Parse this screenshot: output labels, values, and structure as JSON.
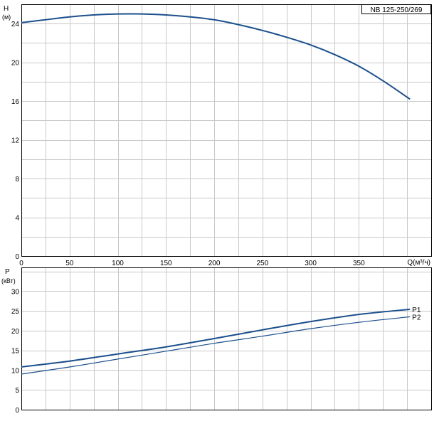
{
  "model_label": "NB 125-250/269",
  "chart_data": [
    {
      "type": "line",
      "y_axis_symbol": "H",
      "y_axis_unit": "(м)",
      "x_axis_label": "Q(м³/ч)",
      "xlim": [
        0,
        425
      ],
      "ylim": [
        0,
        26
      ],
      "x_ticks": [
        0,
        50,
        100,
        150,
        200,
        250,
        300,
        350
      ],
      "y_ticks": [
        0,
        4,
        8,
        12,
        16,
        20,
        24
      ],
      "grid": true,
      "line_color": "#1b4f8c",
      "series": [
        {
          "name": "",
          "x": [
            0,
            25,
            50,
            75,
            100,
            125,
            150,
            175,
            200,
            225,
            250,
            275,
            300,
            325,
            350,
            375,
            403
          ],
          "y": [
            24.1,
            24.4,
            24.7,
            24.9,
            25.0,
            25.0,
            24.9,
            24.7,
            24.4,
            23.9,
            23.3,
            22.6,
            21.8,
            20.8,
            19.6,
            18.1,
            16.2
          ]
        }
      ]
    },
    {
      "type": "line",
      "y_axis_symbol": "P",
      "y_axis_unit": "(кВт)",
      "xlim": [
        0,
        425
      ],
      "ylim": [
        0,
        36
      ],
      "y_ticks": [
        0,
        5,
        10,
        15,
        20,
        25,
        30
      ],
      "grid": true,
      "line_color": "#1b4f8c",
      "series": [
        {
          "name": "P1",
          "x": [
            0,
            50,
            100,
            150,
            200,
            250,
            300,
            350,
            403
          ],
          "y": [
            10.8,
            12.3,
            14.1,
            15.9,
            18.0,
            20.2,
            22.3,
            24.1,
            25.4
          ]
        },
        {
          "name": "P2",
          "x": [
            0,
            50,
            100,
            150,
            200,
            250,
            300,
            350,
            403
          ],
          "y": [
            9.0,
            10.8,
            12.8,
            14.8,
            16.8,
            18.6,
            20.5,
            22.1,
            23.5
          ]
        }
      ]
    }
  ]
}
